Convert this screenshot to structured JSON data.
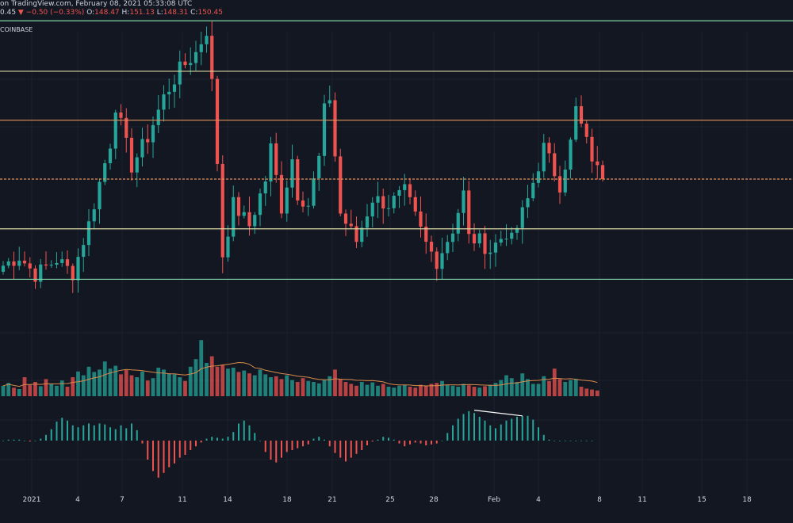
{
  "header": {
    "line1": "on TradingView.com, February 08, 2021 05:33:08 UTC",
    "last_fragment": "0.45",
    "change": "▼ −0.50 (−0.33%)",
    "o_label": "O:",
    "o_value": "148.47",
    "h_label": "H:",
    "h_value": "151.13",
    "l_label": "L:",
    "l_value": "148.31",
    "c_label": "C:",
    "c_value": "150.45",
    "exchange": "COINBASE"
  },
  "colors": {
    "background": "#131722",
    "up": "#26a69a",
    "down": "#ef5350",
    "grid": "#1e2230",
    "level_green": "#7ed6a5",
    "level_yellow": "#d8d6a0",
    "level_orange": "#e0905a",
    "volume_ma": "#d88a4a",
    "divergence_line": "#ffffff"
  },
  "chart_data": {
    "type": "candlestick",
    "x_tick_labels": [
      "2021",
      "4",
      "7",
      "11",
      "14",
      "18",
      "21",
      "25",
      "28",
      "Feb",
      "4",
      "8",
      "11",
      "15",
      "18"
    ],
    "horizontal_levels": [
      {
        "price": 160.8,
        "color": "green"
      },
      {
        "price": 157.5,
        "color": "yellow"
      },
      {
        "price": 154.3,
        "color": "orange"
      },
      {
        "price": 150.45,
        "color": "orange-dashed"
      },
      {
        "price": 147.2,
        "color": "yellow"
      },
      {
        "price": 143.9,
        "color": "green"
      }
    ],
    "last_close": 150.45,
    "candle_anchors": [
      [
        0,
        144.8
      ],
      [
        3,
        145.4
      ],
      [
        6,
        144.2
      ],
      [
        10,
        145.2
      ],
      [
        13,
        144.3
      ],
      [
        16,
        147.5
      ],
      [
        18,
        150.2
      ],
      [
        20,
        152.8
      ],
      [
        21,
        155.3
      ],
      [
        24,
        151.3
      ],
      [
        27,
        153.2
      ],
      [
        30,
        155.8
      ],
      [
        33,
        157.6
      ],
      [
        36,
        158.7
      ],
      [
        38,
        160.2
      ],
      [
        39,
        156.7
      ],
      [
        40,
        151.6
      ],
      [
        41,
        145.5
      ],
      [
        43,
        148.8
      ],
      [
        46,
        147.4
      ],
      [
        49,
        150.4
      ],
      [
        50,
        152.5
      ],
      [
        52,
        148.6
      ],
      [
        54,
        151.8
      ],
      [
        55,
        149.5
      ],
      [
        57,
        148.8
      ],
      [
        59,
        151.8
      ],
      [
        60,
        154.9
      ],
      [
        61,
        155.8
      ],
      [
        63,
        148.2
      ],
      [
        66,
        146.4
      ],
      [
        69,
        149.2
      ],
      [
        72,
        148.8
      ],
      [
        75,
        149.6
      ],
      [
        76,
        148.8
      ],
      [
        79,
        146.2
      ],
      [
        81,
        145.1
      ],
      [
        84,
        147.2
      ],
      [
        86,
        149.5
      ],
      [
        87,
        146.6
      ],
      [
        89,
        146.4
      ],
      [
        91,
        145.8
      ],
      [
        94,
        147.0
      ],
      [
        95,
        146.4
      ],
      [
        98,
        149.1
      ],
      [
        101,
        152.5
      ],
      [
        104,
        150.1
      ],
      [
        106,
        152.8
      ],
      [
        107,
        155.0
      ],
      [
        109,
        152.8
      ],
      [
        111,
        151.0
      ],
      [
        112,
        150.5
      ]
    ],
    "volume_series": {
      "name": "Volume",
      "values": [
        22,
        28,
        18,
        15,
        40,
        24,
        30,
        21,
        36,
        26,
        22,
        33,
        20,
        40,
        52,
        44,
        62,
        51,
        56,
        73,
        58,
        64,
        46,
        55,
        44,
        40,
        52,
        33,
        38,
        60,
        56,
        48,
        46,
        40,
        32,
        62,
        78,
        118,
        70,
        84,
        62,
        66,
        58,
        60,
        51,
        54,
        48,
        44,
        56,
        46,
        40,
        42,
        36,
        44,
        34,
        30,
        38,
        32,
        30,
        27,
        34,
        42,
        56,
        36,
        30,
        26,
        22,
        30,
        24,
        29,
        22,
        26,
        20,
        18,
        22,
        24,
        20,
        18,
        24,
        22,
        26,
        28,
        32,
        24,
        22,
        20,
        26,
        23,
        20,
        18,
        21,
        24,
        28,
        34,
        44,
        38,
        30,
        48,
        36,
        26,
        26,
        42,
        32,
        58,
        36,
        30,
        34,
        36,
        20,
        16,
        14,
        12
      ]
    },
    "oscillator_series": {
      "name": "MACD histogram",
      "values": [
        0,
        0.1,
        0.1,
        0.1,
        0,
        -0.1,
        0,
        0.2,
        0.6,
        1.2,
        2.0,
        2.4,
        2.1,
        1.6,
        1.4,
        1.6,
        1.8,
        1.6,
        1.8,
        1.7,
        1.4,
        1.2,
        1.6,
        1.3,
        1.8,
        1.1,
        -0.3,
        -2.0,
        -3.2,
        -3.9,
        -3.4,
        -2.8,
        -2.4,
        -1.8,
        -1.5,
        -1.0,
        -0.6,
        -0.2,
        0.2,
        0.4,
        0.3,
        0.2,
        0.4,
        0.9,
        1.8,
        2.1,
        1.6,
        0.8,
        0,
        -1.2,
        -2.0,
        -2.3,
        -1.8,
        -1.2,
        -1.0,
        -0.8,
        -0.6,
        -0.4,
        0.2,
        0.4,
        0.1,
        -0.6,
        -1.3,
        -1.8,
        -2.2,
        -1.8,
        -1.4,
        -1.0,
        -0.5,
        -0.1,
        0.1,
        0.4,
        0.3,
        0.1,
        -0.3,
        -0.6,
        -0.4,
        -0.2,
        -0.3,
        -0.5,
        -0.4,
        -0.3,
        0,
        0.8,
        1.6,
        2.3,
        2.8,
        3.1,
        2.9,
        2.5,
        2.1,
        1.6,
        1.3,
        1.7,
        2.1,
        2.3,
        2.5,
        2.6,
        2.6,
        2.2,
        1.4,
        0.6,
        0.1,
        0,
        0,
        0,
        0,
        0,
        0,
        0,
        0
      ]
    },
    "divergence_line": {
      "from": [
        88,
        3.2
      ],
      "to": [
        97,
        2.6
      ]
    }
  }
}
